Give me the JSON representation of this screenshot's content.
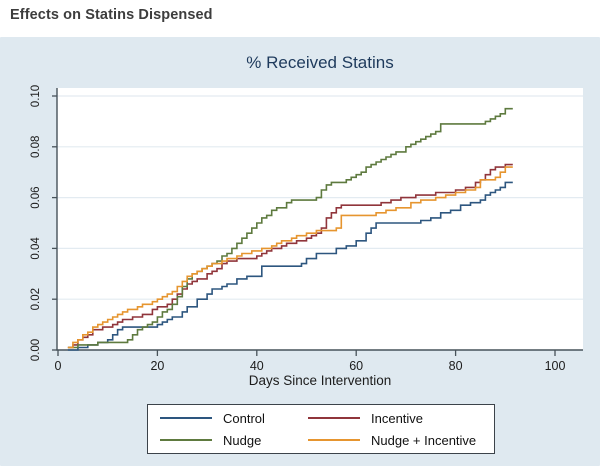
{
  "header": {
    "title": "Effects on Statins Dispensed"
  },
  "chart_data": {
    "type": "line",
    "subtype": "step-cumulative-incidence",
    "title": "% Received Statins",
    "xlabel": "Days Since Intervention",
    "ylabel": "",
    "xlim": [
      0,
      100
    ],
    "ylim": [
      0.0,
      0.1
    ],
    "x_ticks": [
      0,
      20,
      40,
      60,
      80,
      100
    ],
    "y_ticks": [
      "0.00",
      "0.02",
      "0.04",
      "0.06",
      "0.08",
      "0.10"
    ],
    "grid": "horizontal-only",
    "legend_position": "bottom-center",
    "colors": {
      "chart_background": "#dfe9f0",
      "plot_background": "#ffffff",
      "gridline": "#e3ebf1",
      "axis": "#47525a",
      "title_text": "#1e3a5c"
    },
    "series": [
      {
        "name": "Control",
        "color": "#2d567f",
        "points": [
          [
            2,
            0
          ],
          [
            4,
            0.001
          ],
          [
            6,
            0.002
          ],
          [
            8,
            0.003
          ],
          [
            10,
            0.004
          ],
          [
            11,
            0.006
          ],
          [
            12,
            0.008
          ],
          [
            13,
            0.009
          ],
          [
            20,
            0.01
          ],
          [
            21,
            0.011
          ],
          [
            22,
            0.012
          ],
          [
            23,
            0.013
          ],
          [
            25,
            0.015
          ],
          [
            26,
            0.017
          ],
          [
            28,
            0.02
          ],
          [
            30,
            0.022
          ],
          [
            31,
            0.024
          ],
          [
            33,
            0.025
          ],
          [
            34,
            0.026
          ],
          [
            36,
            0.028
          ],
          [
            38,
            0.029
          ],
          [
            41,
            0.033
          ],
          [
            49,
            0.034
          ],
          [
            50,
            0.036
          ],
          [
            52,
            0.038
          ],
          [
            56,
            0.04
          ],
          [
            58,
            0.041
          ],
          [
            60,
            0.043
          ],
          [
            62,
            0.046
          ],
          [
            63,
            0.048
          ],
          [
            64,
            0.05
          ],
          [
            73,
            0.051
          ],
          [
            75,
            0.052
          ],
          [
            77,
            0.054
          ],
          [
            79,
            0.055
          ],
          [
            81,
            0.057
          ],
          [
            83,
            0.058
          ],
          [
            85,
            0.059
          ],
          [
            86,
            0.061
          ],
          [
            87,
            0.062
          ],
          [
            88,
            0.063
          ],
          [
            89,
            0.064
          ],
          [
            90,
            0.066
          ]
        ]
      },
      {
        "name": "Incentive",
        "color": "#90353b",
        "points": [
          [
            2,
            0.001
          ],
          [
            3,
            0.002
          ],
          [
            4,
            0.004
          ],
          [
            5,
            0.005
          ],
          [
            6,
            0.006
          ],
          [
            7,
            0.008
          ],
          [
            9,
            0.009
          ],
          [
            11,
            0.01
          ],
          [
            12,
            0.011
          ],
          [
            13,
            0.012
          ],
          [
            15,
            0.013
          ],
          [
            17,
            0.014
          ],
          [
            19,
            0.016
          ],
          [
            20,
            0.017
          ],
          [
            22,
            0.018
          ],
          [
            23,
            0.02
          ],
          [
            24,
            0.022
          ],
          [
            25,
            0.024
          ],
          [
            26,
            0.026
          ],
          [
            27,
            0.027
          ],
          [
            28,
            0.028
          ],
          [
            30,
            0.03
          ],
          [
            31,
            0.031
          ],
          [
            32,
            0.032
          ],
          [
            33,
            0.034
          ],
          [
            34,
            0.035
          ],
          [
            36,
            0.036
          ],
          [
            40,
            0.037
          ],
          [
            41,
            0.038
          ],
          [
            42,
            0.039
          ],
          [
            43,
            0.04
          ],
          [
            45,
            0.041
          ],
          [
            46,
            0.042
          ],
          [
            48,
            0.043
          ],
          [
            50,
            0.044
          ],
          [
            51,
            0.045
          ],
          [
            52,
            0.046
          ],
          [
            53,
            0.048
          ],
          [
            54,
            0.052
          ],
          [
            55,
            0.054
          ],
          [
            56,
            0.056
          ],
          [
            57,
            0.057
          ],
          [
            65,
            0.058
          ],
          [
            67,
            0.059
          ],
          [
            69,
            0.06
          ],
          [
            72,
            0.061
          ],
          [
            76,
            0.062
          ],
          [
            80,
            0.063
          ],
          [
            82,
            0.064
          ],
          [
            84,
            0.066
          ],
          [
            85,
            0.067
          ],
          [
            86,
            0.069
          ],
          [
            87,
            0.071
          ],
          [
            88,
            0.072
          ],
          [
            90,
            0.073
          ]
        ]
      },
      {
        "name": "Nudge",
        "color": "#5e7a3f",
        "points": [
          [
            2,
            0.001
          ],
          [
            4,
            0.002
          ],
          [
            8,
            0.003
          ],
          [
            14,
            0.004
          ],
          [
            15,
            0.006
          ],
          [
            16,
            0.008
          ],
          [
            17,
            0.009
          ],
          [
            18,
            0.01
          ],
          [
            19,
            0.011
          ],
          [
            20,
            0.013
          ],
          [
            21,
            0.015
          ],
          [
            22,
            0.016
          ],
          [
            23,
            0.018
          ],
          [
            24,
            0.021
          ],
          [
            25,
            0.025
          ],
          [
            26,
            0.028
          ],
          [
            27,
            0.03
          ],
          [
            28,
            0.031
          ],
          [
            29,
            0.032
          ],
          [
            30,
            0.033
          ],
          [
            31,
            0.034
          ],
          [
            32,
            0.035
          ],
          [
            33,
            0.037
          ],
          [
            34,
            0.038
          ],
          [
            35,
            0.04
          ],
          [
            36,
            0.042
          ],
          [
            37,
            0.044
          ],
          [
            38,
            0.046
          ],
          [
            39,
            0.048
          ],
          [
            40,
            0.05
          ],
          [
            41,
            0.052
          ],
          [
            42,
            0.053
          ],
          [
            43,
            0.055
          ],
          [
            44,
            0.056
          ],
          [
            46,
            0.058
          ],
          [
            47,
            0.059
          ],
          [
            52,
            0.06
          ],
          [
            53,
            0.063
          ],
          [
            54,
            0.065
          ],
          [
            55,
            0.066
          ],
          [
            58,
            0.067
          ],
          [
            59,
            0.068
          ],
          [
            60,
            0.069
          ],
          [
            61,
            0.07
          ],
          [
            62,
            0.072
          ],
          [
            63,
            0.073
          ],
          [
            64,
            0.074
          ],
          [
            65,
            0.075
          ],
          [
            66,
            0.076
          ],
          [
            67,
            0.077
          ],
          [
            68,
            0.078
          ],
          [
            70,
            0.08
          ],
          [
            71,
            0.081
          ],
          [
            72,
            0.082
          ],
          [
            73,
            0.083
          ],
          [
            74,
            0.084
          ],
          [
            75,
            0.085
          ],
          [
            76,
            0.086
          ],
          [
            77,
            0.089
          ],
          [
            86,
            0.09
          ],
          [
            87,
            0.091
          ],
          [
            88,
            0.092
          ],
          [
            89,
            0.093
          ],
          [
            90,
            0.095
          ]
        ]
      },
      {
        "name": "Nudge + Incentive",
        "color": "#e6952f",
        "points": [
          [
            2,
            0.001
          ],
          [
            3,
            0.003
          ],
          [
            4,
            0.004
          ],
          [
            5,
            0.006
          ],
          [
            6,
            0.007
          ],
          [
            7,
            0.009
          ],
          [
            8,
            0.01
          ],
          [
            9,
            0.011
          ],
          [
            10,
            0.012
          ],
          [
            11,
            0.013
          ],
          [
            12,
            0.014
          ],
          [
            13,
            0.015
          ],
          [
            14,
            0.016
          ],
          [
            16,
            0.017
          ],
          [
            17,
            0.018
          ],
          [
            19,
            0.019
          ],
          [
            20,
            0.02
          ],
          [
            21,
            0.021
          ],
          [
            22,
            0.022
          ],
          [
            23,
            0.023
          ],
          [
            24,
            0.025
          ],
          [
            25,
            0.027
          ],
          [
            26,
            0.029
          ],
          [
            27,
            0.03
          ],
          [
            28,
            0.031
          ],
          [
            29,
            0.032
          ],
          [
            30,
            0.033
          ],
          [
            31,
            0.034
          ],
          [
            33,
            0.035
          ],
          [
            34,
            0.036
          ],
          [
            36,
            0.037
          ],
          [
            37,
            0.038
          ],
          [
            39,
            0.039
          ],
          [
            41,
            0.04
          ],
          [
            43,
            0.041
          ],
          [
            44,
            0.042
          ],
          [
            45,
            0.043
          ],
          [
            47,
            0.044
          ],
          [
            48,
            0.045
          ],
          [
            50,
            0.046
          ],
          [
            52,
            0.047
          ],
          [
            56,
            0.048
          ],
          [
            57,
            0.053
          ],
          [
            64,
            0.054
          ],
          [
            66,
            0.055
          ],
          [
            68,
            0.056
          ],
          [
            71,
            0.058
          ],
          [
            73,
            0.059
          ],
          [
            76,
            0.06
          ],
          [
            78,
            0.061
          ],
          [
            80,
            0.062
          ],
          [
            82,
            0.063
          ],
          [
            84,
            0.064
          ],
          [
            85,
            0.067
          ],
          [
            88,
            0.068
          ],
          [
            89,
            0.07
          ],
          [
            90,
            0.072
          ]
        ]
      }
    ]
  }
}
